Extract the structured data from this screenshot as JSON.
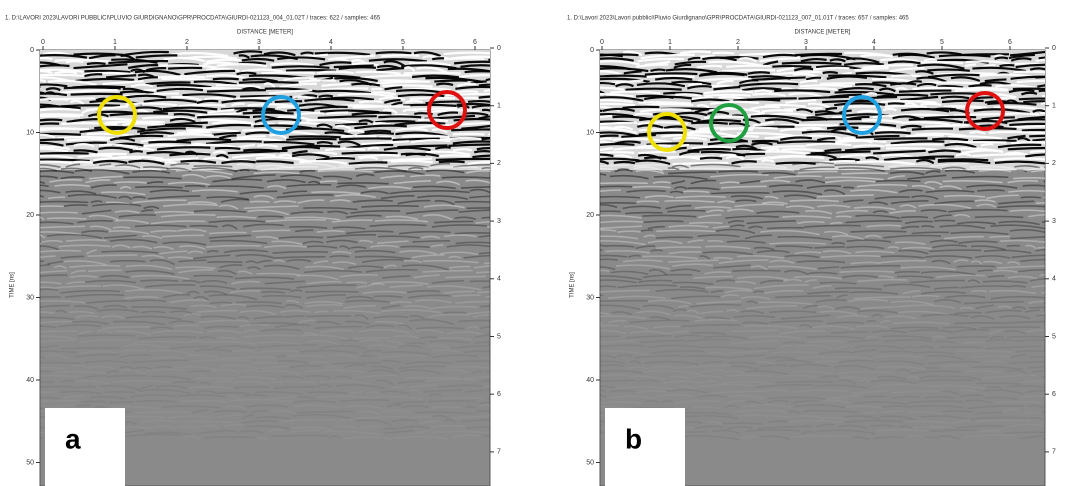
{
  "panels": [
    {
      "header": "1. D:\\LAVORI 2023\\LAVORI PUBBLICI\\PLUVIO GIURDIGNANO\\GPR\\PROCDATA\\GIURDI-021123_004_01.02T / traces: 622 / samples: 465",
      "x_axis_label": "DISTANCE [METER]",
      "y_axis_label": "TIME [ns]",
      "xticks": [
        0,
        1,
        2,
        3,
        4,
        5,
        6
      ],
      "yticks": [
        0,
        10,
        20,
        30,
        40,
        50
      ],
      "y2ticks": [
        0,
        1,
        2,
        3,
        4,
        5,
        6,
        7
      ],
      "label": "a"
    },
    {
      "header": "1. D:\\Lavori 2023\\Lavori pubblici\\Pluvio Giurdignano\\GPR\\PROCDATA\\GIURDI-021123_007_01.01T / traces: 657 / samples: 465",
      "x_axis_label": "DISTANCE [METER]",
      "y_axis_label": "TIME [ns]",
      "xticks": [
        0,
        1,
        2,
        3,
        4,
        5,
        6
      ],
      "yticks": [
        0,
        10,
        20,
        30,
        40,
        50
      ],
      "y2ticks": [
        0,
        1,
        2,
        3,
        4,
        5,
        6,
        7
      ],
      "label": "b"
    }
  ]
}
